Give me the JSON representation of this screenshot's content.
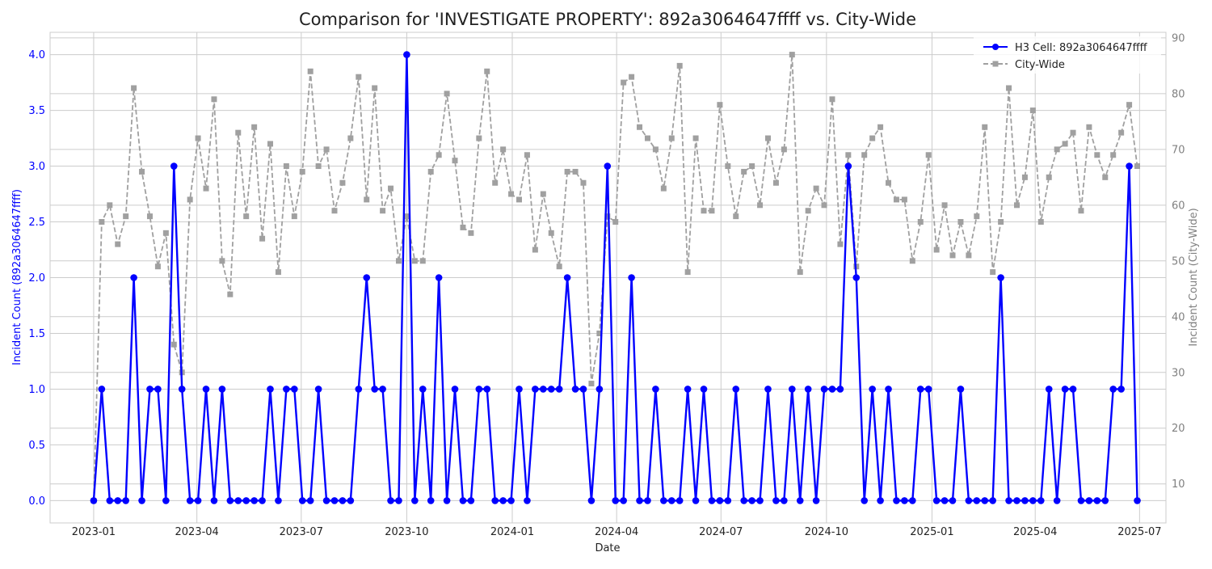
{
  "chart_data": {
    "type": "line",
    "title": "Comparison for 'INVESTIGATE PROPERTY': 892a3064647ffff vs. City-Wide",
    "xlabel": "Date",
    "ylabel_left": "Incident Count (892a3064647ffff)",
    "ylabel_right": "Incident Count (City-Wide)",
    "x_ticks": [
      "2023-01",
      "2023-04",
      "2023-07",
      "2023-10",
      "2024-01",
      "2024-04",
      "2024-07",
      "2024-10",
      "2025-01",
      "2025-04",
      "2025-07"
    ],
    "y_left_ticks": [
      "0.0",
      "0.5",
      "1.0",
      "1.5",
      "2.0",
      "2.5",
      "3.0",
      "3.5",
      "4.0"
    ],
    "y_right_ticks": [
      "10",
      "20",
      "30",
      "40",
      "50",
      "60",
      "70",
      "80",
      "90"
    ],
    "ylim_left": [
      -0.2,
      4.2
    ],
    "ylim_right": [
      3,
      91
    ],
    "x_range": [
      "2022-11-24",
      "2025-07-24"
    ],
    "grid": true,
    "legend_position": "top-right",
    "colors": {
      "h3": "#0000ff",
      "city": "#a0a0a0",
      "left_axis": "#0000ff",
      "right_axis": "#808080"
    },
    "dates": [
      "2023-01-01",
      "2023-01-08",
      "2023-01-15",
      "2023-01-22",
      "2023-01-29",
      "2023-02-05",
      "2023-02-12",
      "2023-02-19",
      "2023-02-26",
      "2023-03-05",
      "2023-03-12",
      "2023-03-19",
      "2023-03-26",
      "2023-04-02",
      "2023-04-09",
      "2023-04-16",
      "2023-04-23",
      "2023-04-30",
      "2023-05-07",
      "2023-05-14",
      "2023-05-21",
      "2023-05-28",
      "2023-06-04",
      "2023-06-11",
      "2023-06-18",
      "2023-06-25",
      "2023-07-02",
      "2023-07-09",
      "2023-07-16",
      "2023-07-23",
      "2023-07-30",
      "2023-08-06",
      "2023-08-13",
      "2023-08-20",
      "2023-08-27",
      "2023-09-03",
      "2023-09-10",
      "2023-09-17",
      "2023-09-24",
      "2023-10-01",
      "2023-10-08",
      "2023-10-15",
      "2023-10-22",
      "2023-10-29",
      "2023-11-05",
      "2023-11-12",
      "2023-11-19",
      "2023-11-26",
      "2023-12-03",
      "2023-12-10",
      "2023-12-17",
      "2023-12-24",
      "2023-12-31",
      "2024-01-07",
      "2024-01-14",
      "2024-01-21",
      "2024-01-28",
      "2024-02-04",
      "2024-02-11",
      "2024-02-18",
      "2024-02-25",
      "2024-03-03",
      "2024-03-10",
      "2024-03-17",
      "2024-03-24",
      "2024-03-31",
      "2024-04-07",
      "2024-04-14",
      "2024-04-21",
      "2024-04-28",
      "2024-05-05",
      "2024-05-12",
      "2024-05-19",
      "2024-05-26",
      "2024-06-02",
      "2024-06-09",
      "2024-06-16",
      "2024-06-23",
      "2024-06-30",
      "2024-07-07",
      "2024-07-14",
      "2024-07-21",
      "2024-07-28",
      "2024-08-04",
      "2024-08-11",
      "2024-08-18",
      "2024-08-25",
      "2024-09-01",
      "2024-09-08",
      "2024-09-15",
      "2024-09-22",
      "2024-09-29",
      "2024-10-06",
      "2024-10-13",
      "2024-10-20",
      "2024-10-27",
      "2024-11-03",
      "2024-11-10",
      "2024-11-17",
      "2024-11-24",
      "2024-12-01",
      "2024-12-08",
      "2024-12-15",
      "2024-12-22",
      "2024-12-29",
      "2025-01-05",
      "2025-01-12",
      "2025-01-19",
      "2025-01-26",
      "2025-02-02",
      "2025-02-09",
      "2025-02-16",
      "2025-02-23",
      "2025-03-02",
      "2025-03-09",
      "2025-03-16",
      "2025-03-23",
      "2025-03-30",
      "2025-04-06",
      "2025-04-13",
      "2025-04-20",
      "2025-04-27",
      "2025-05-04",
      "2025-05-11",
      "2025-05-18",
      "2025-05-25",
      "2025-06-01",
      "2025-06-08",
      "2025-06-15",
      "2025-06-22",
      "2025-06-29"
    ],
    "series": [
      {
        "name": "H3 Cell: 892a3064647ffff",
        "axis": "left",
        "marker": "circle",
        "dash": "solid",
        "values": [
          0,
          1,
          0,
          0,
          0,
          2,
          0,
          1,
          1,
          0,
          3,
          1,
          0,
          0,
          1,
          0,
          1,
          0,
          0,
          0,
          0,
          0,
          1,
          0,
          1,
          1,
          0,
          0,
          1,
          0,
          0,
          0,
          0,
          1,
          2,
          1,
          1,
          0,
          0,
          4,
          0,
          1,
          0,
          2,
          0,
          1,
          0,
          0,
          1,
          1,
          0,
          0,
          0,
          1,
          0,
          1,
          1,
          1,
          1,
          2,
          1,
          1,
          0,
          1,
          3,
          0,
          0,
          2,
          0,
          0,
          1,
          0,
          0,
          0,
          1,
          0,
          1,
          0,
          0,
          0,
          1,
          0,
          0,
          0,
          1,
          0,
          0,
          1,
          0,
          1,
          0,
          1,
          1,
          1,
          3,
          2,
          0,
          1,
          0,
          1,
          0,
          0,
          0,
          1,
          1,
          0,
          0,
          0,
          1,
          0,
          0,
          0,
          0,
          2,
          0,
          0,
          0,
          0,
          0,
          1,
          0,
          1,
          1,
          0,
          0,
          0,
          0,
          1,
          1,
          3,
          0
        ]
      },
      {
        "name": "City-Wide",
        "axis": "right",
        "marker": "square",
        "dash": "dashed",
        "values": [
          7,
          57,
          60,
          53,
          58,
          81,
          66,
          58,
          49,
          55,
          35,
          30,
          61,
          72,
          63,
          79,
          50,
          44,
          73,
          58,
          74,
          54,
          71,
          48,
          67,
          58,
          66,
          84,
          67,
          70,
          59,
          64,
          72,
          83,
          61,
          81,
          59,
          63,
          50,
          58,
          50,
          50,
          66,
          69,
          80,
          68,
          56,
          55,
          72,
          84,
          64,
          70,
          62,
          61,
          69,
          52,
          62,
          55,
          49,
          66,
          66,
          64,
          28,
          37,
          58,
          57,
          82,
          83,
          74,
          72,
          70,
          63,
          72,
          85,
          48,
          72,
          59,
          59,
          78,
          67,
          58,
          66,
          67,
          60,
          72,
          64,
          70,
          87,
          48,
          59,
          63,
          60,
          79,
          53,
          69,
          49,
          69,
          72,
          74,
          64,
          61,
          61,
          50,
          57,
          69,
          52,
          60,
          51,
          57,
          51,
          58,
          74,
          48,
          57,
          81,
          60,
          65,
          77,
          57,
          65,
          70,
          71,
          73,
          59,
          74,
          69,
          65,
          69,
          73,
          78,
          67
        ]
      }
    ]
  }
}
